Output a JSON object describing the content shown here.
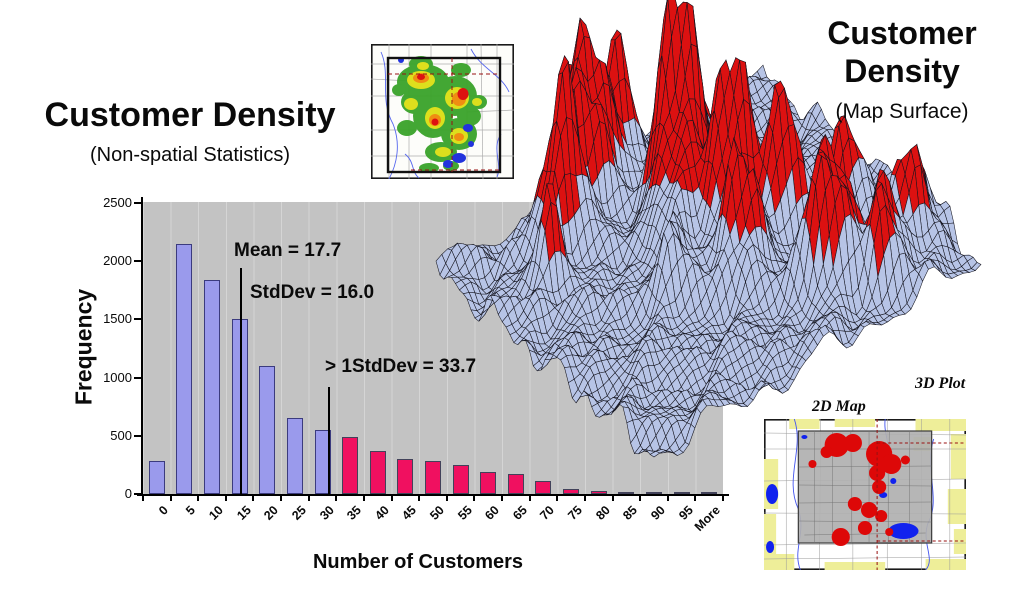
{
  "slide": {
    "left_heading": {
      "title": "Customer Density",
      "subtitle": "(Non-spatial Statistics)"
    },
    "right_heading": {
      "title_line1": "Customer",
      "title_line2": "Density",
      "subtitle": "(Map Surface)"
    },
    "surface_label": "3D Plot",
    "map_label": "2D Map"
  },
  "chart_data": {
    "type": "bar",
    "xlabel": "Number of Customers",
    "ylabel": "Frequency",
    "ylim": [
      0,
      2500
    ],
    "yticks": [
      0,
      500,
      1000,
      1500,
      2000,
      2500
    ],
    "grid": "off",
    "legend": "none",
    "plot_background": "#c3c3c3",
    "categories": [
      "0",
      "5",
      "10",
      "15",
      "20",
      "25",
      "30",
      "35",
      "40",
      "45",
      "50",
      "55",
      "60",
      "65",
      "70",
      "75",
      "80",
      "85",
      "90",
      "95",
      "More"
    ],
    "values": [
      280,
      2150,
      1840,
      1500,
      1100,
      650,
      550,
      490,
      370,
      300,
      280,
      250,
      190,
      170,
      110,
      40,
      25,
      20,
      10,
      10,
      10
    ],
    "pink_start_index": 7,
    "bar_colors": {
      "below_1stddev": "#9a9aec",
      "above_1stddev": "#f01060"
    },
    "annotations": {
      "mean": {
        "label": "Mean = 17.7",
        "value": 17.7
      },
      "stddev": {
        "label": "StdDev = 16.0",
        "value": 16.0
      },
      "threshold": {
        "label": "> 1StdDev = 33.7",
        "value": 33.7
      }
    }
  },
  "surface_chart": {
    "type": "heatmap",
    "description_title": "Customer Density (Map Surface)",
    "low_color": "#b7c4e6",
    "peak_color": "#dc1111",
    "mesh_line_color": "#14141e"
  },
  "colors": {
    "background": "#ffffff",
    "axis": "#000000",
    "heat_green": "#3aa32a",
    "heat_yellow": "#e6e31c",
    "heat_orange": "#ef8e12",
    "heat_red": "#dd1111",
    "water_blue": "#2233dd",
    "map_yellow": "#eeee99",
    "map_gray": "#b0b0b0"
  }
}
